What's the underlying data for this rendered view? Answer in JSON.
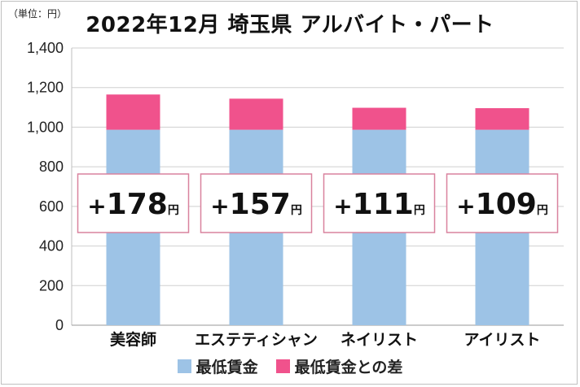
{
  "unit_label": "（単位：円）",
  "chart_data": {
    "type": "bar",
    "title": "2022年12月 埼玉県 アルバイト・パート",
    "categories": [
      "美容師",
      "エステティシャン",
      "ネイリスト",
      "アイリスト"
    ],
    "series": [
      {
        "name": "最低賃金",
        "values": [
          987,
          987,
          987,
          987
        ],
        "color": "#9dc3e6"
      },
      {
        "name": "最低賃金との差",
        "values": [
          178,
          157,
          111,
          109
        ],
        "color": "#f0528c"
      }
    ],
    "annotations": [
      {
        "sign": "+",
        "value": "178",
        "unit": "円"
      },
      {
        "sign": "+",
        "value": "157",
        "unit": "円"
      },
      {
        "sign": "+",
        "value": "111",
        "unit": "円"
      },
      {
        "sign": "+",
        "value": "109",
        "unit": "円"
      }
    ],
    "yticks": [
      "0",
      "200",
      "400",
      "600",
      "800",
      "1,000",
      "1,200",
      "1,400"
    ],
    "ylim": [
      0,
      1400
    ],
    "grid": true,
    "stacked": true,
    "legend_position": "bottom"
  }
}
